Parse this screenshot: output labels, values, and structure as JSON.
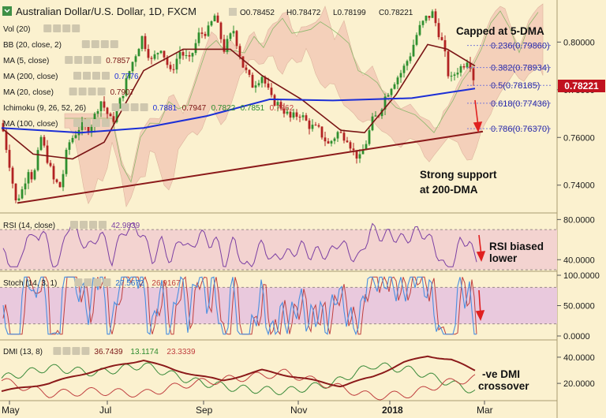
{
  "header": {
    "symbol": "Australian Dollar/U.S. Dollar, 1D, FXCM",
    "open": "O0.78452",
    "high": "H0.78472",
    "low": "L0.78199",
    "close": "C0.78221"
  },
  "indicators": [
    {
      "label": "Vol (20)",
      "values": []
    },
    {
      "label": "BB (20, close, 2)",
      "values": []
    },
    {
      "label": "MA (5, close)",
      "values": [
        {
          "text": "0.7857",
          "color": "#7a1515"
        }
      ]
    },
    {
      "label": "MA (200, close)",
      "values": [
        {
          "text": "0.7776",
          "color": "#1c2fd6"
        }
      ]
    },
    {
      "label": "MA (20, close)",
      "values": [
        {
          "text": "0.7907",
          "color": "#7a1515"
        }
      ]
    },
    {
      "label": "Ichimoku (9, 26, 52, 26)",
      "values": [
        {
          "text": "0.7881",
          "color": "#1c2fd6"
        },
        {
          "text": "0.7947",
          "color": "#7a1515"
        },
        {
          "text": "0.7822",
          "color": "#2c8a2c"
        },
        {
          "text": "0.7851",
          "color": "#2c8a2c"
        },
        {
          "text": "0.7762",
          "color": "#c04040"
        }
      ]
    },
    {
      "label": "MA (100, close)",
      "values": []
    }
  ],
  "price_badge": "0.78221",
  "fib_levels": [
    {
      "label": "0.236(0.79860)",
      "value": 0.7986
    },
    {
      "label": "0.382(0.78934)",
      "value": 0.78934
    },
    {
      "label": "0.5(0.78185)",
      "value": 0.78185
    },
    {
      "label": "0.618(0.77436)",
      "value": 0.77436
    },
    {
      "label": "0.786(0.76370)",
      "value": 0.7637
    }
  ],
  "annotations": {
    "capped": "Capped at 5-DMA",
    "support_line1": "Strong support",
    "support_line2": "at 200-DMA",
    "rsi_line1": "RSI biased",
    "rsi_line2": "lower",
    "dmi_line1": "-ve DMI",
    "dmi_line2": "crossover"
  },
  "rsi_legend": {
    "label": "RSI (14, close)",
    "value": "42.9839"
  },
  "stoch_legend": {
    "label": "Stoch (14, 3, 1)",
    "k": "27.5672",
    "d": "26.9167"
  },
  "dmi_legend": {
    "label": "DMI (13, 8)",
    "v1": "36.7439",
    "v2": "13.1174",
    "v3": "23.3339"
  },
  "colors": {
    "background": "#fbf1cf",
    "bull_candle": "#2f8f2f",
    "bear_candle": "#b22222",
    "ma200": "#1c2fd6",
    "ma20": "#7a1515",
    "trendline": "#8b1a1a",
    "cloud_bull": "#bcd79b",
    "cloud_bear": "#f2c5b4",
    "rsi_line": "#7b3fa3",
    "rsi_band": "#f3d3d0",
    "stoch_k": "#4a8fe0",
    "stoch_d": "#c04040",
    "stoch_band": "#e9c9dd",
    "dmi_adx": "#8b1a1a",
    "dmi_plus": "#3a8a3a",
    "dmi_minus": "#c04040",
    "arrow": "#e02020"
  },
  "chart_data": [
    {
      "type": "candlestick",
      "title": "Australian Dollar/U.S. Dollar, 1D, FXCM",
      "x_ticks": [
        "May",
        "Jul",
        "Sep",
        "Nov",
        "2018",
        "Mar"
      ],
      "y_ticks": [
        0.74,
        0.76,
        0.78,
        0.8
      ],
      "y_tick_labels": [
        "0.74000",
        "0.76000",
        "0.78000",
        "0.80000"
      ],
      "ylim": [
        0.729,
        0.815
      ],
      "last": 0.78221,
      "price_path": [
        [
          0,
          0.766
        ],
        [
          10,
          0.749
        ],
        [
          18,
          0.733
        ],
        [
          26,
          0.738
        ],
        [
          34,
          0.747
        ],
        [
          40,
          0.742
        ],
        [
          50,
          0.76
        ],
        [
          58,
          0.751
        ],
        [
          66,
          0.742
        ],
        [
          75,
          0.739
        ],
        [
          84,
          0.757
        ],
        [
          92,
          0.761
        ],
        [
          100,
          0.765
        ],
        [
          108,
          0.763
        ],
        [
          115,
          0.766
        ],
        [
          125,
          0.776
        ],
        [
          140,
          0.766
        ],
        [
          152,
          0.777
        ],
        [
          164,
          0.79
        ],
        [
          178,
          0.802
        ],
        [
          190,
          0.792
        ],
        [
          202,
          0.798
        ],
        [
          214,
          0.787
        ],
        [
          226,
          0.796
        ],
        [
          238,
          0.792
        ],
        [
          250,
          0.803
        ],
        [
          262,
          0.805
        ],
        [
          270,
          0.811
        ],
        [
          282,
          0.797
        ],
        [
          294,
          0.805
        ],
        [
          306,
          0.79
        ],
        [
          318,
          0.782
        ],
        [
          330,
          0.786
        ],
        [
          342,
          0.776
        ],
        [
          354,
          0.773
        ],
        [
          366,
          0.768
        ],
        [
          378,
          0.77
        ],
        [
          390,
          0.765
        ],
        [
          402,
          0.763
        ],
        [
          414,
          0.757
        ],
        [
          426,
          0.762
        ],
        [
          438,
          0.76
        ],
        [
          446,
          0.754
        ],
        [
          454,
          0.751
        ],
        [
          462,
          0.758
        ],
        [
          470,
          0.767
        ],
        [
          478,
          0.77
        ],
        [
          486,
          0.777
        ],
        [
          496,
          0.783
        ],
        [
          508,
          0.788
        ],
        [
          518,
          0.795
        ],
        [
          528,
          0.805
        ],
        [
          538,
          0.81
        ],
        [
          546,
          0.812
        ],
        [
          552,
          0.806
        ],
        [
          560,
          0.798
        ],
        [
          568,
          0.783
        ],
        [
          576,
          0.788
        ],
        [
          584,
          0.79
        ],
        [
          592,
          0.794
        ],
        [
          600,
          0.782
        ]
      ],
      "ma200": [
        [
          0,
          0.764
        ],
        [
          100,
          0.762
        ],
        [
          180,
          0.764
        ],
        [
          260,
          0.769
        ],
        [
          340,
          0.776
        ],
        [
          420,
          0.7755
        ],
        [
          470,
          0.776
        ],
        [
          520,
          0.7765
        ],
        [
          570,
          0.779
        ],
        [
          600,
          0.7805
        ]
      ],
      "ma20": [
        [
          0,
          0.764
        ],
        [
          40,
          0.753
        ],
        [
          90,
          0.751
        ],
        [
          130,
          0.758
        ],
        [
          180,
          0.788
        ],
        [
          230,
          0.797
        ],
        [
          290,
          0.797
        ],
        [
          330,
          0.786
        ],
        [
          380,
          0.776
        ],
        [
          430,
          0.763
        ],
        [
          460,
          0.762
        ],
        [
          500,
          0.778
        ],
        [
          540,
          0.799
        ],
        [
          565,
          0.797
        ],
        [
          600,
          0.79
        ]
      ],
      "trendline": [
        [
          20,
          0.7325
        ],
        [
          610,
          0.7625
        ]
      ],
      "fib_start_x": 590
    },
    {
      "type": "line",
      "name": "RSI (14, close)",
      "y_ticks": [
        40,
        80
      ],
      "y_tick_labels": [
        "40.0000",
        "80.0000"
      ],
      "band": [
        30,
        70
      ],
      "ylim": [
        30,
        85
      ],
      "last": 42.9839
    },
    {
      "type": "line",
      "name": "Stoch (14, 3, 1)",
      "y_ticks": [
        0,
        50,
        100
      ],
      "y_tick_labels": [
        "0.0000",
        "50.0000",
        "100.0000"
      ],
      "band": [
        20,
        80
      ],
      "ylim": [
        0,
        100
      ]
    },
    {
      "type": "line",
      "name": "DMI (13, 8)",
      "y_ticks": [
        20,
        40
      ],
      "y_tick_labels": [
        "20.0000",
        "40.0000"
      ],
      "ylim": [
        8,
        52
      ],
      "adx_path": [
        [
          0,
          14
        ],
        [
          60,
          20
        ],
        [
          120,
          30
        ],
        [
          180,
          38
        ],
        [
          220,
          30
        ],
        [
          280,
          22
        ],
        [
          330,
          30
        ],
        [
          380,
          24
        ],
        [
          430,
          18
        ],
        [
          470,
          25
        ],
        [
          510,
          36
        ],
        [
          540,
          41
        ],
        [
          570,
          38
        ],
        [
          600,
          30
        ]
      ],
      "plus_path": [
        [
          0,
          24
        ],
        [
          60,
          32
        ],
        [
          120,
          28
        ],
        [
          180,
          34
        ],
        [
          240,
          22
        ],
        [
          300,
          16
        ],
        [
          360,
          14
        ],
        [
          420,
          20
        ],
        [
          470,
          34
        ],
        [
          520,
          30
        ],
        [
          560,
          22
        ],
        [
          600,
          14
        ]
      ],
      "minus_path": [
        [
          0,
          22
        ],
        [
          60,
          12
        ],
        [
          120,
          14
        ],
        [
          180,
          12
        ],
        [
          240,
          20
        ],
        [
          300,
          24
        ],
        [
          360,
          28
        ],
        [
          420,
          18
        ],
        [
          470,
          10
        ],
        [
          520,
          12
        ],
        [
          560,
          20
        ],
        [
          600,
          24
        ]
      ]
    }
  ]
}
